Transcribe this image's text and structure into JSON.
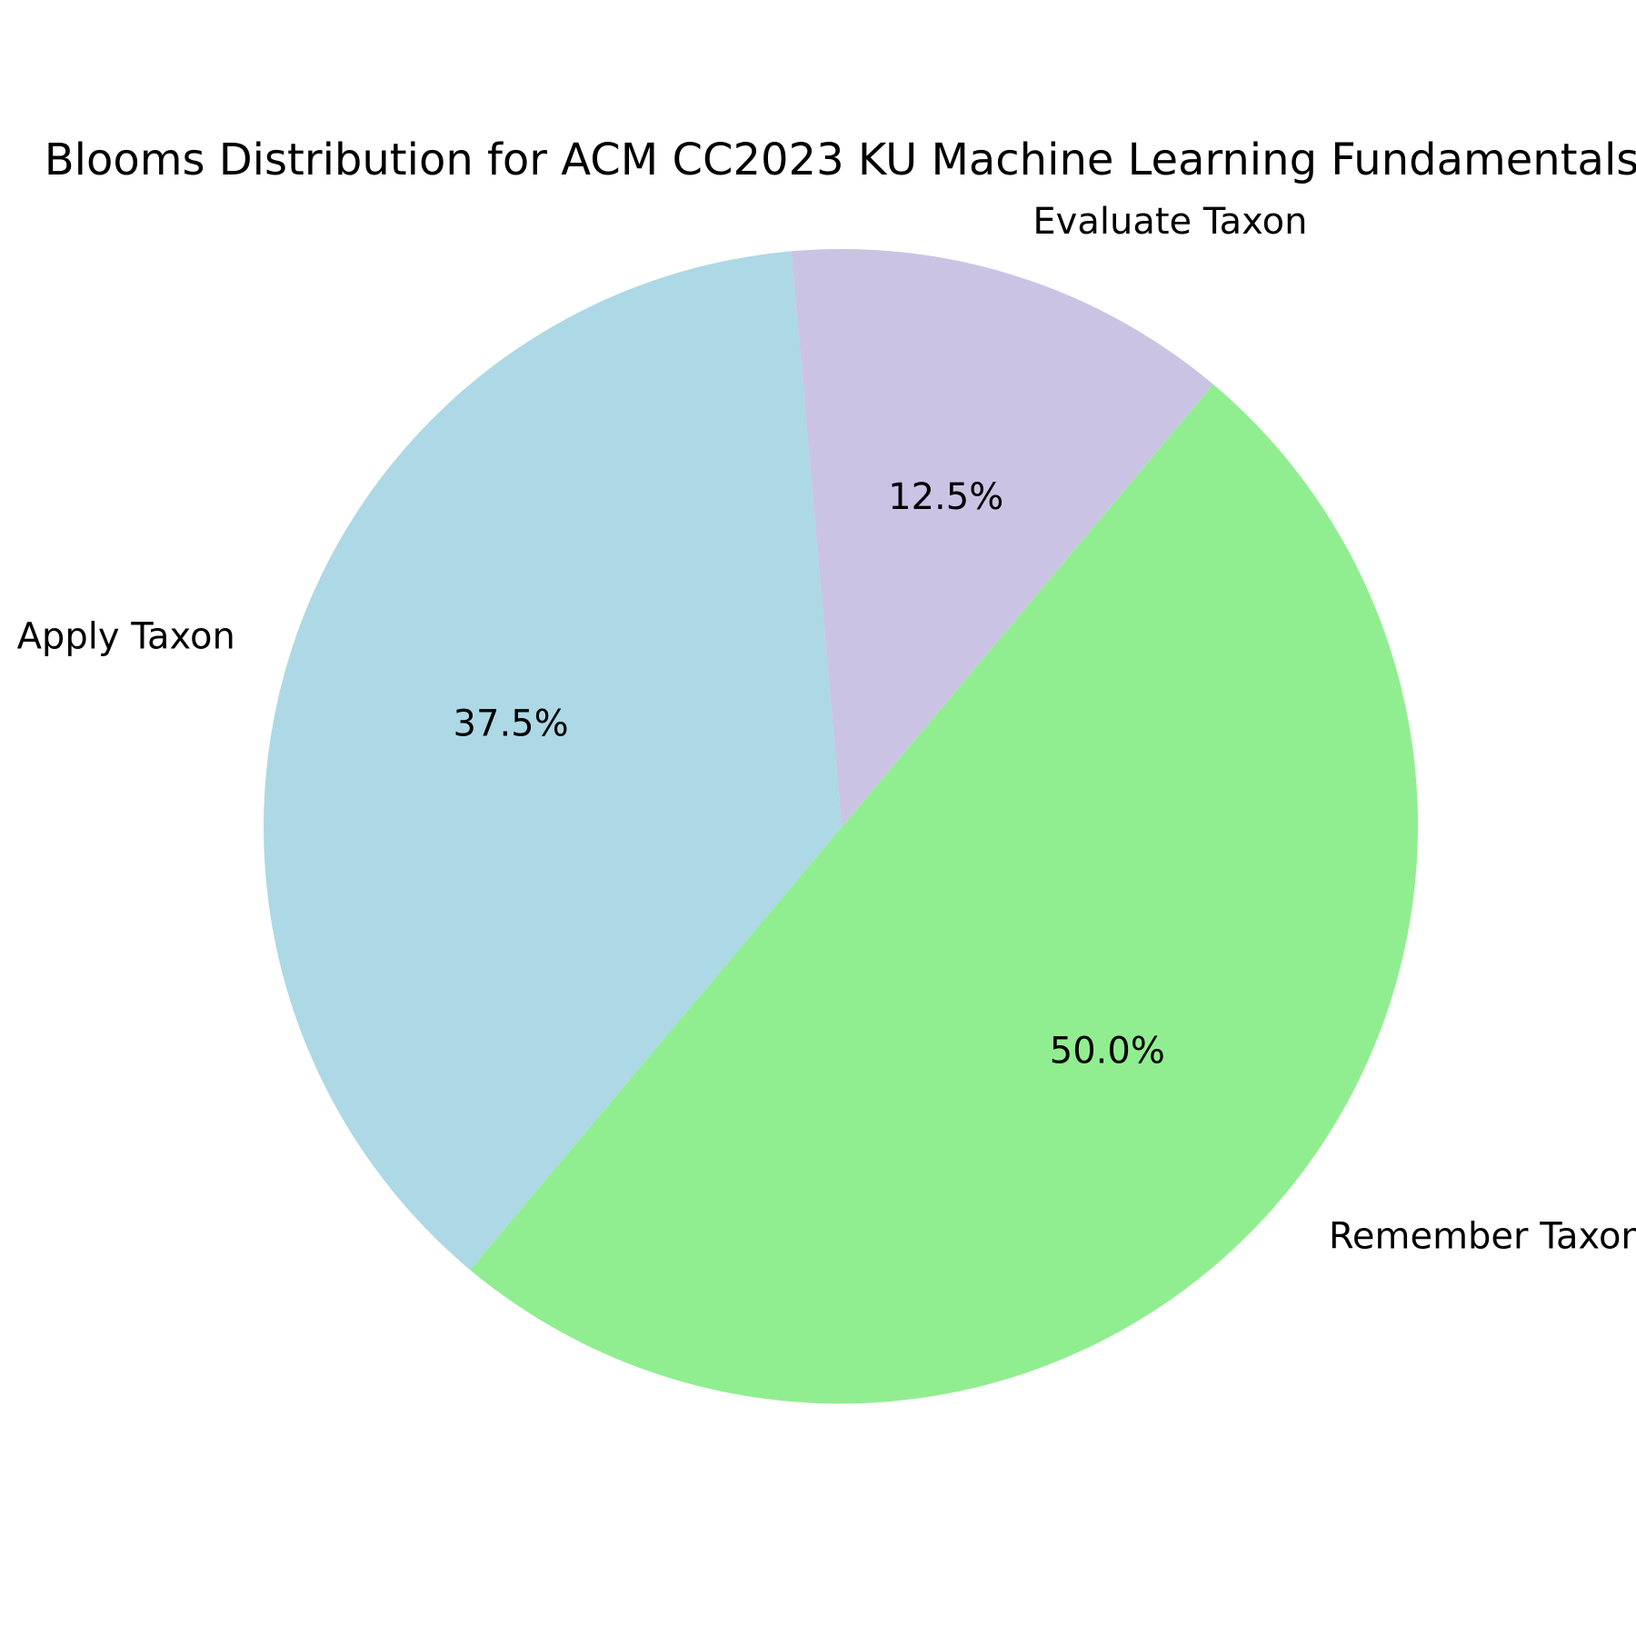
{
  "chart_data": {
    "type": "pie",
    "title": "Blooms Distribution for ACM CC2023 KU Machine Learning Fundamentals",
    "slices": [
      {
        "label": "Apply Taxon",
        "value": 37.5,
        "pct_label": "37.5%",
        "color": "#add8e6"
      },
      {
        "label": "Remember Taxon",
        "value": 50.0,
        "pct_label": "50.0%",
        "color": "#90ee90"
      },
      {
        "label": "Evaluate Taxon",
        "value": 12.5,
        "pct_label": "12.5%",
        "color": "#cbc3e3"
      }
    ],
    "start_angle_deg": 95,
    "direction": "counterclockwise"
  }
}
